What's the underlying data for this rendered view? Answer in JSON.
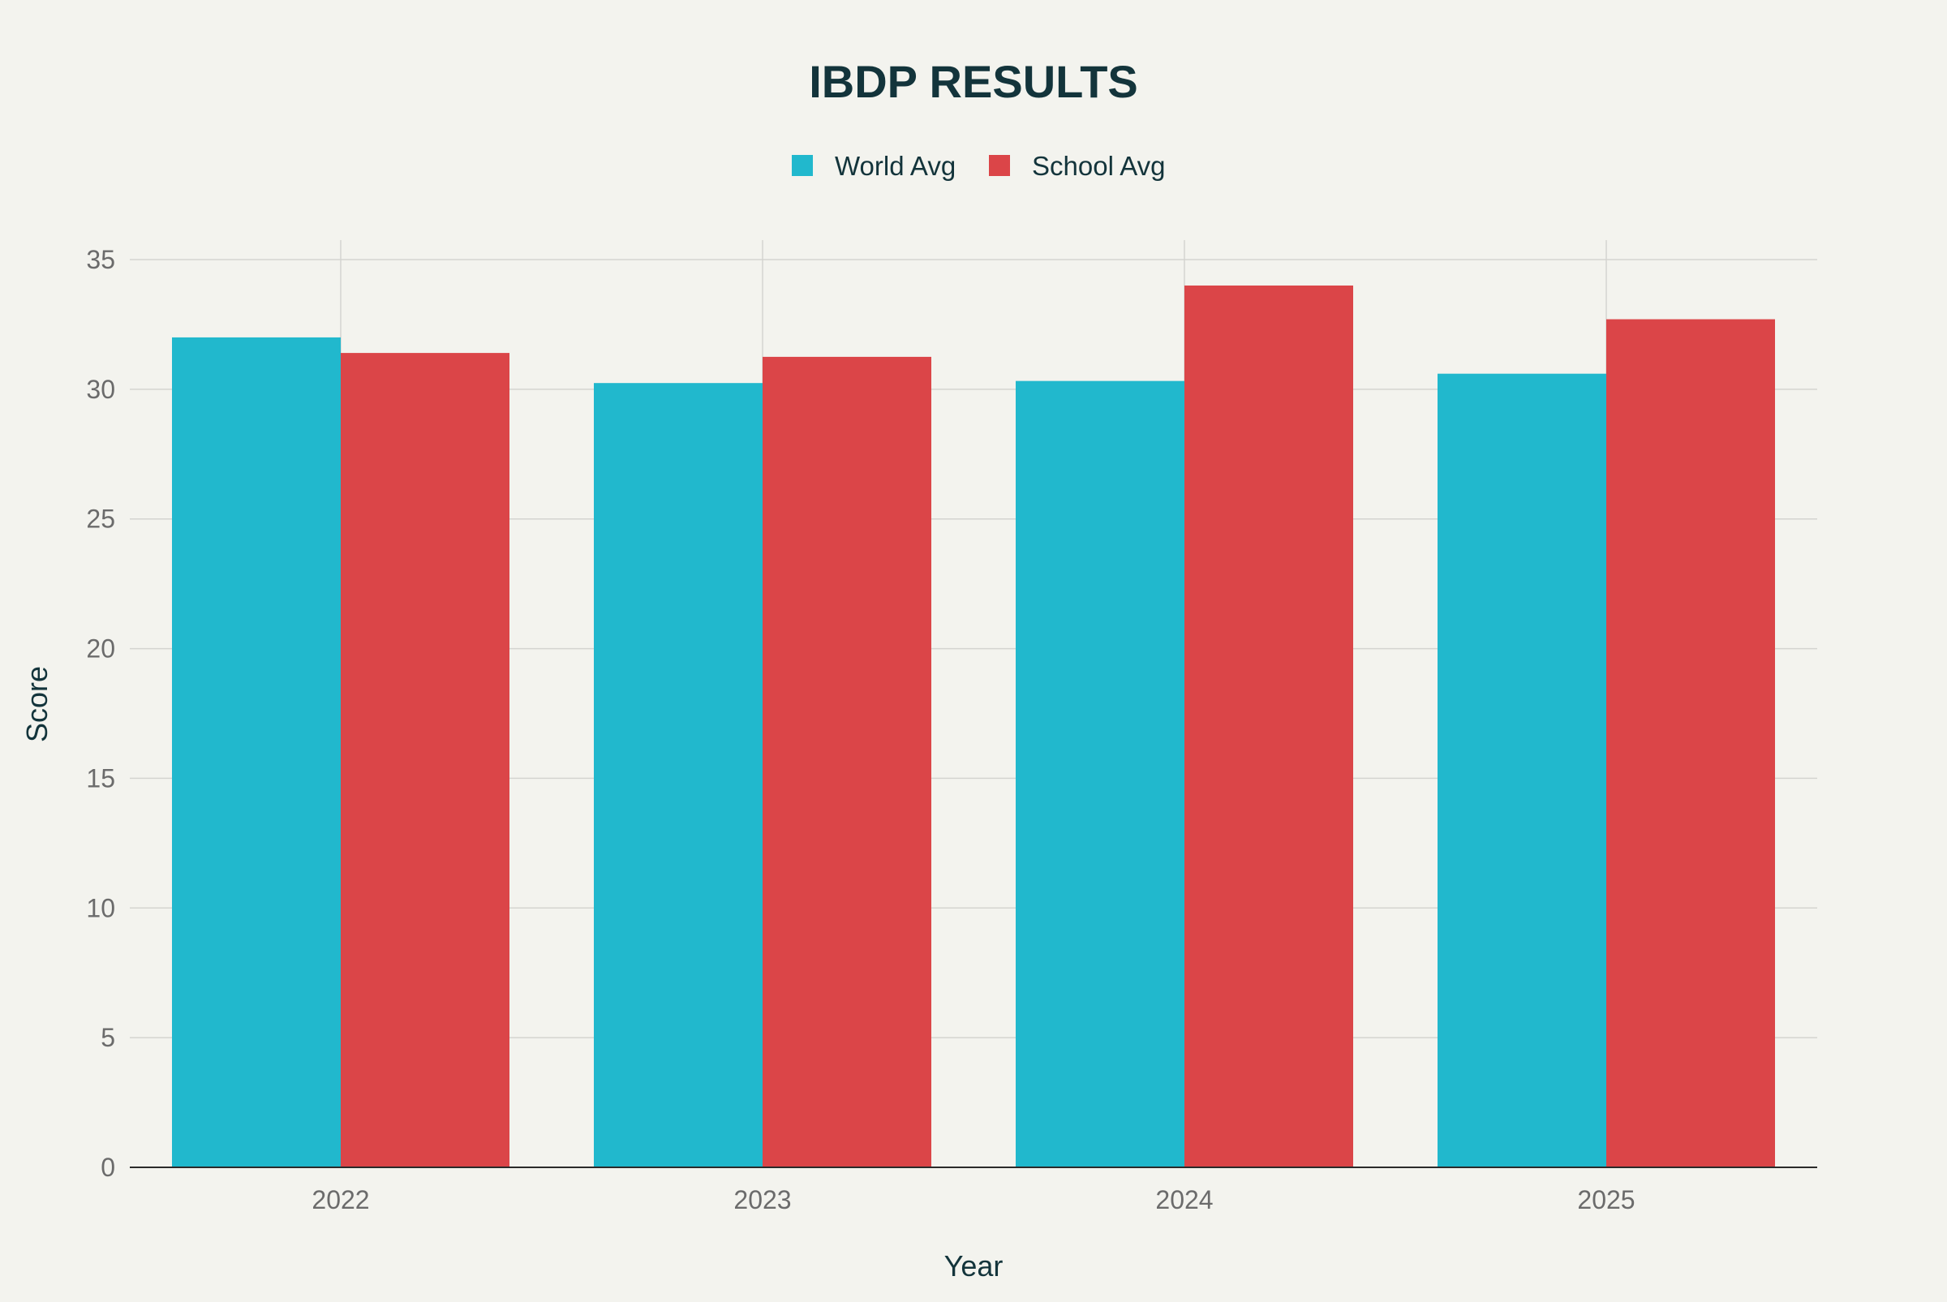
{
  "chart_data": {
    "type": "bar",
    "title": "IBDP RESULTS",
    "xlabel": "Year",
    "ylabel": "Score",
    "categories": [
      "2022",
      "2023",
      "2024",
      "2025"
    ],
    "series": [
      {
        "name": "World Avg",
        "color": "#21b8cd",
        "values": [
          32.0,
          30.24,
          30.32,
          30.6
        ]
      },
      {
        "name": "School Avg",
        "color": "#db4548",
        "values": [
          31.4,
          31.25,
          34.0,
          32.7
        ]
      }
    ],
    "ylim": [
      0,
      35
    ],
    "yticks": [
      0,
      5,
      10,
      15,
      20,
      25,
      30,
      35
    ],
    "grid": true,
    "legend_position": "top-center"
  }
}
